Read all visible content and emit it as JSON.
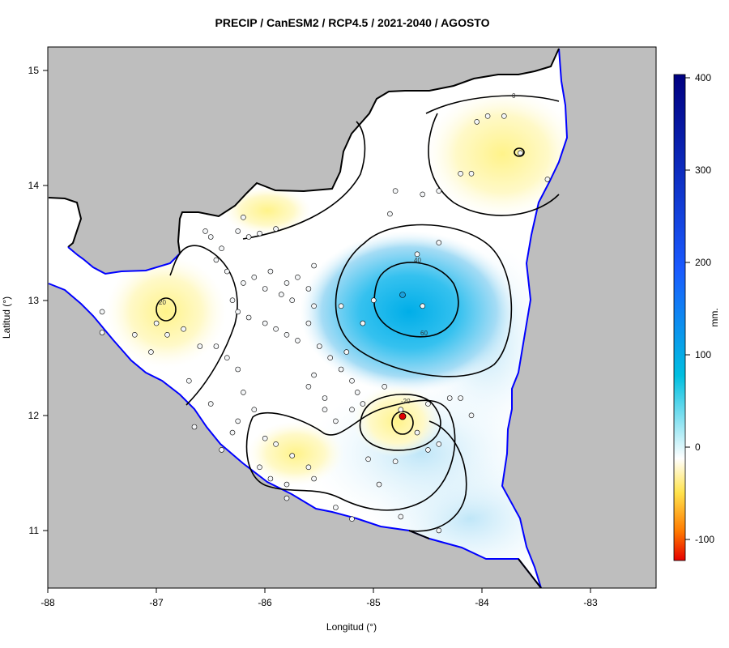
{
  "title": "PRECIP / CanESM2 / RCP4.5 / 2021-2040 / AGOSTO",
  "xlabel": "Longitud (°)",
  "ylabel": "Latitud (°)",
  "x_ticks": [
    "-88",
    "-87",
    "-86",
    "-85",
    "-84",
    "-83"
  ],
  "y_ticks": [
    "15",
    "14",
    "13",
    "12",
    "11"
  ],
  "colorbar": {
    "unit": "mm.",
    "ticks": [
      "400",
      "300",
      "200",
      "100",
      "0",
      "-100"
    ],
    "colors": [
      "#e00000",
      "#ff8c00",
      "#ffff33",
      "#ffffff",
      "#00a0e0",
      "#1e3cff",
      "#00008b"
    ]
  },
  "contour_labels": [
    "0",
    "20",
    "40",
    "60",
    "-20",
    "20",
    "0"
  ],
  "colors": {
    "land_gray": "#bebebe",
    "coast_blue": "#0000ff",
    "border": "#000000"
  },
  "chart_data": {
    "type": "heatmap",
    "title": "PRECIP / CanESM2 / RCP4.5 / 2021-2040 / AGOSTO",
    "xlabel": "Longitud (°)",
    "ylabel": "Latitud (°)",
    "xlim": [
      -88,
      -82.4
    ],
    "ylim": [
      10.5,
      15.2
    ],
    "colorbar_range": [
      -120,
      405
    ],
    "highlights": [
      {
        "lon": -84.7,
        "lat": 12.95,
        "value": 60
      },
      {
        "lon": -84.72,
        "lat": 11.98,
        "value": -20
      },
      {
        "lon": -86.9,
        "lat": 12.9,
        "value": -20
      },
      {
        "lon": -83.65,
        "lat": 14.28,
        "value": -20
      }
    ],
    "stations": [
      [
        -86.2,
        13.72
      ],
      [
        -86.05,
        13.58
      ],
      [
        -85.9,
        13.62
      ],
      [
        -86.15,
        13.55
      ],
      [
        -86.25,
        13.6
      ],
      [
        -86.4,
        13.45
      ],
      [
        -86.5,
        13.55
      ],
      [
        -86.55,
        13.6
      ],
      [
        -86.45,
        13.35
      ],
      [
        -86.35,
        13.25
      ],
      [
        -86.2,
        13.15
      ],
      [
        -86.1,
        13.2
      ],
      [
        -86.0,
        13.1
      ],
      [
        -85.95,
        13.25
      ],
      [
        -85.85,
        13.05
      ],
      [
        -85.8,
        13.15
      ],
      [
        -85.75,
        13.0
      ],
      [
        -85.7,
        13.2
      ],
      [
        -85.6,
        13.1
      ],
      [
        -85.55,
        13.3
      ],
      [
        -86.3,
        13.0
      ],
      [
        -86.25,
        12.9
      ],
      [
        -86.15,
        12.85
      ],
      [
        -86.0,
        12.8
      ],
      [
        -85.9,
        12.75
      ],
      [
        -85.8,
        12.7
      ],
      [
        -85.7,
        12.65
      ],
      [
        -85.6,
        12.8
      ],
      [
        -85.5,
        12.6
      ],
      [
        -85.4,
        12.5
      ],
      [
        -85.3,
        12.4
      ],
      [
        -85.2,
        12.3
      ],
      [
        -86.45,
        12.6
      ],
      [
        -86.35,
        12.5
      ],
      [
        -86.25,
        12.4
      ],
      [
        -86.2,
        12.2
      ],
      [
        -86.1,
        12.05
      ],
      [
        -86.25,
        11.95
      ],
      [
        -86.3,
        11.85
      ],
      [
        -86.0,
        11.8
      ],
      [
        -85.9,
        11.75
      ],
      [
        -85.75,
        11.65
      ],
      [
        -85.6,
        11.55
      ],
      [
        -85.55,
        11.45
      ],
      [
        -85.8,
        11.4
      ],
      [
        -85.95,
        11.45
      ],
      [
        -85.35,
        11.2
      ],
      [
        -85.2,
        11.1
      ],
      [
        -86.6,
        12.6
      ],
      [
        -86.75,
        12.75
      ],
      [
        -86.9,
        12.7
      ],
      [
        -87.0,
        12.8
      ],
      [
        -87.05,
        12.55
      ],
      [
        -87.2,
        12.7
      ],
      [
        -87.5,
        12.9
      ],
      [
        -87.5,
        12.72
      ],
      [
        -86.7,
        12.3
      ],
      [
        -86.5,
        12.1
      ],
      [
        -86.65,
        11.9
      ],
      [
        -86.4,
        11.7
      ],
      [
        -86.05,
        11.55
      ],
      [
        -85.8,
        11.28
      ],
      [
        -84.75,
        11.12
      ],
      [
        -84.4,
        11.0
      ],
      [
        -84.9,
        12.25
      ],
      [
        -84.75,
        12.05
      ],
      [
        -84.6,
        11.85
      ],
      [
        -84.5,
        11.7
      ],
      [
        -84.8,
        11.6
      ],
      [
        -84.5,
        12.1
      ],
      [
        -84.3,
        12.15
      ],
      [
        -84.1,
        12.0
      ],
      [
        -85.05,
        11.62
      ],
      [
        -84.95,
        11.4
      ],
      [
        -84.4,
        11.75
      ],
      [
        -84.2,
        12.15
      ],
      [
        -84.55,
        12.95
      ],
      [
        -84.4,
        13.5
      ],
      [
        -84.6,
        13.4
      ],
      [
        -84.85,
        13.75
      ],
      [
        -84.8,
        13.95
      ],
      [
        -84.55,
        13.92
      ],
      [
        -84.4,
        13.95
      ],
      [
        -84.2,
        14.1
      ],
      [
        -84.1,
        14.1
      ],
      [
        -83.95,
        14.6
      ],
      [
        -83.8,
        14.6
      ],
      [
        -83.65,
        14.28
      ],
      [
        -83.4,
        14.05
      ],
      [
        -84.05,
        14.55
      ],
      [
        -85.0,
        13.0
      ],
      [
        -85.3,
        12.95
      ],
      [
        -85.55,
        12.95
      ],
      [
        -85.1,
        12.8
      ],
      [
        -85.25,
        12.55
      ],
      [
        -85.55,
        12.35
      ],
      [
        -85.6,
        12.25
      ],
      [
        -85.45,
        12.15
      ],
      [
        -85.45,
        12.05
      ],
      [
        -85.35,
        11.95
      ],
      [
        -85.15,
        12.2
      ],
      [
        -85.1,
        12.1
      ],
      [
        -85.2,
        12.05
      ]
    ]
  }
}
